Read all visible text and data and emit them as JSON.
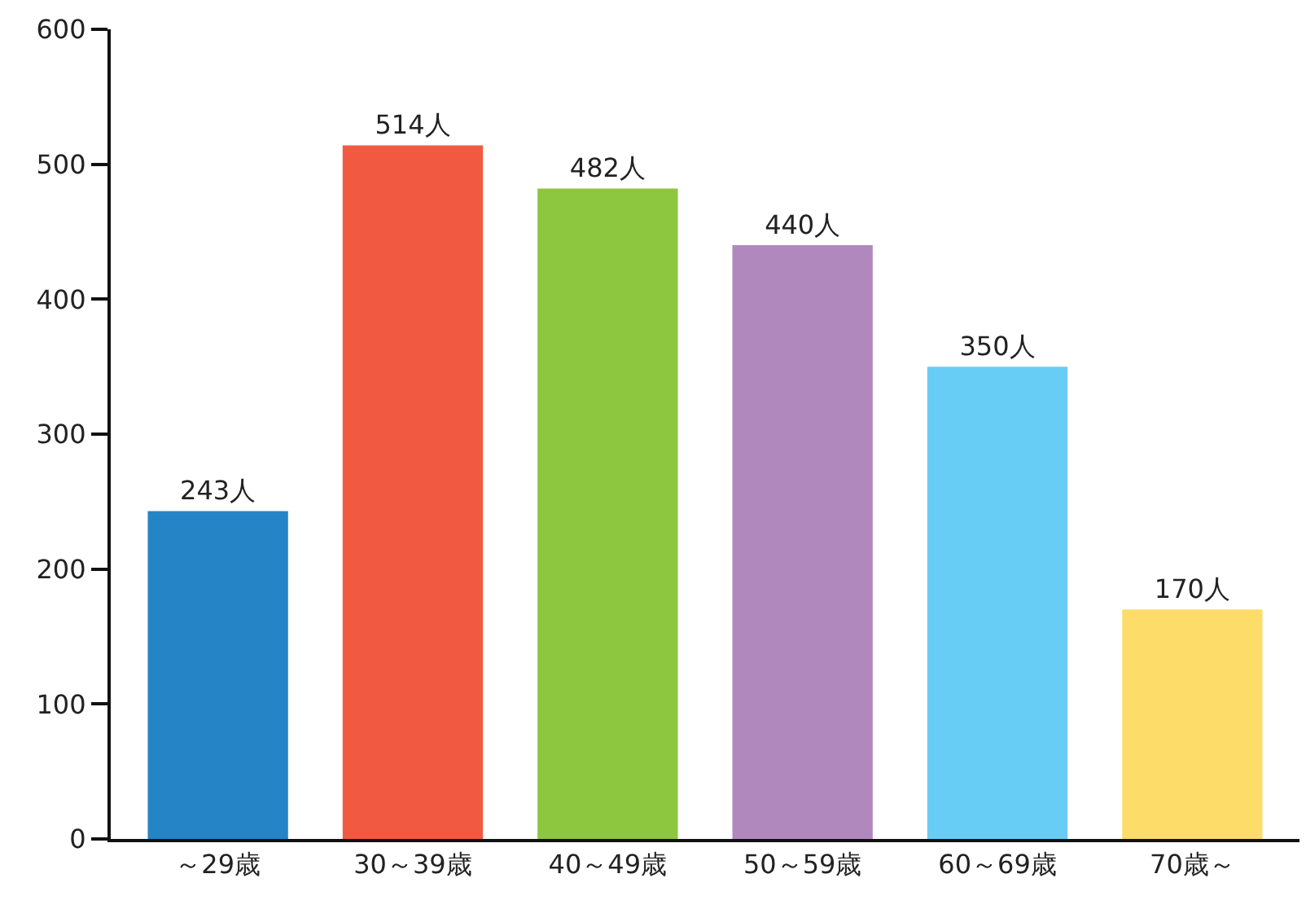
{
  "chart_data": {
    "type": "bar",
    "categories": [
      "～29歳",
      "30～39歳",
      "40～49歳",
      "50～59歳",
      "60～69歳",
      "70歳～"
    ],
    "values": [
      243,
      514,
      482,
      440,
      350,
      170
    ],
    "colors": [
      "#2584c6",
      "#f15a40",
      "#8dc63f",
      "#b088be",
      "#68cdf4",
      "#fedc69"
    ],
    "value_labels": [
      "243人",
      "514人",
      "482人",
      "440人",
      "350人",
      "170人"
    ],
    "ylim": [
      0,
      600
    ],
    "yticks": [
      0,
      100,
      200,
      300,
      400,
      500,
      600
    ]
  }
}
